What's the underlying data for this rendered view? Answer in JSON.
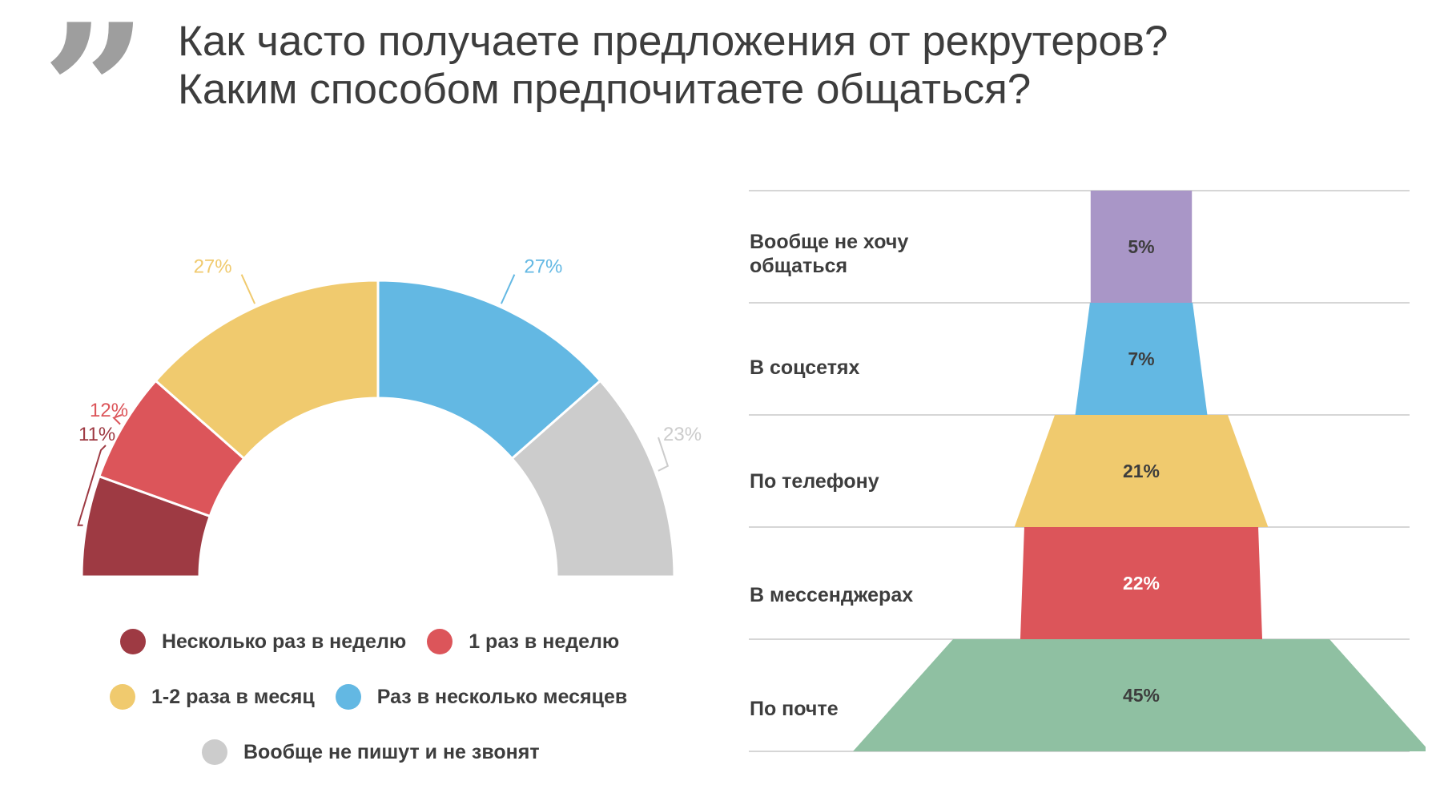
{
  "title": {
    "line1": "Как часто получаете предложения от рекрутеров?",
    "line2": "Каким способом предпочитаете общаться?"
  },
  "chart_data": [
    {
      "type": "pie",
      "subtype": "half-donut",
      "slices": [
        {
          "label": "Несколько раз в неделю",
          "value": 11,
          "display": "11%",
          "color": "#9e3a43"
        },
        {
          "label": "1 раз в неделю",
          "value": 12,
          "display": "12%",
          "color": "#dc555a"
        },
        {
          "label": "1-2 раза в месяц",
          "value": 27,
          "display": "27%",
          "color": "#f0ca6e"
        },
        {
          "label": "Раз в несколько месяцев",
          "value": 27,
          "display": "27%",
          "color": "#63b8e3"
        },
        {
          "label": "Вообще не пишут и не звонят",
          "value": 23,
          "display": "23%",
          "color": "#cccccc"
        }
      ],
      "legend_position": "bottom"
    },
    {
      "type": "funnel",
      "categories": [
        "Вообще не хочу общаться",
        "В соцсетях",
        "По телефону",
        "В мессенджерах",
        "По почте"
      ],
      "values": [
        5,
        7,
        21,
        22,
        45
      ],
      "labels": [
        "5%",
        "7%",
        "21%",
        "22%",
        "45%"
      ],
      "colors": [
        "#a996c7",
        "#63b8e3",
        "#f0ca6e",
        "#dc555a",
        "#8fc0a2"
      ],
      "label_colors": [
        "#3d3d3d",
        "#3d3d3d",
        "#3d3d3d",
        "#ffffff",
        "#3d3d3d"
      ]
    }
  ],
  "funnel_labels": [
    {
      "line1": "Вообще не хочу",
      "line2": "общаться"
    },
    {
      "line1": "В соцсетях",
      "line2": ""
    },
    {
      "line1": "По телефону",
      "line2": ""
    },
    {
      "line1": "В мессенджерах",
      "line2": ""
    },
    {
      "line1": "По почте",
      "line2": ""
    }
  ]
}
